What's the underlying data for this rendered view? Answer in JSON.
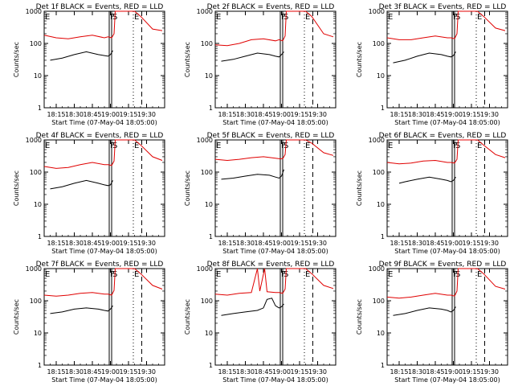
{
  "colors": {
    "events": "#000000",
    "lld": "#e00000",
    "background": "#ffffff",
    "axes": "#000000"
  },
  "chart_data": [
    {
      "type": "line",
      "title": "Det 1f BLACK = Events, RED = LLD",
      "xlabel": "Start Time (07-May-04 18:05:00)",
      "ylabel": "Counts/sec",
      "yscale": "log",
      "ylim": [
        1,
        1000
      ],
      "xlim": [
        "18:05",
        "19:45"
      ],
      "x_ticks": [
        "18:15",
        "18:30",
        "18:45",
        "19:00",
        "19:15",
        "19:30"
      ],
      "y_ticks": [
        "1",
        "10",
        "100",
        "1000"
      ],
      "grid": false,
      "marker_labels": [
        {
          "label": "E",
          "x": "18:05",
          "style": "dotted"
        },
        {
          "label": "F",
          "x": "18:59",
          "style": "solid"
        },
        {
          "label": "S",
          "x": "19:01",
          "style": "dashed"
        },
        {
          "label": "E",
          "x": "19:19",
          "style": "dotted"
        },
        {
          "label": "",
          "x": "19:26",
          "style": "dashed"
        }
      ],
      "series": [
        {
          "name": "Events",
          "x": [
            "18:10",
            "18:20",
            "18:30",
            "18:40",
            "18:50",
            "18:55",
            "18:58",
            "19:00",
            "19:02"
          ],
          "values": [
            30,
            35,
            45,
            55,
            45,
            42,
            40,
            45,
            60
          ]
        },
        {
          "name": "LLD",
          "x": [
            "18:05",
            "18:15",
            "18:25",
            "18:35",
            "18:45",
            "18:55",
            "18:58",
            "19:01",
            "19:03",
            "19:04",
            "19:20",
            "19:25",
            "19:35",
            "19:43"
          ],
          "values": [
            180,
            150,
            140,
            160,
            180,
            150,
            160,
            150,
            200,
            1000,
            1000,
            700,
            280,
            250
          ]
        }
      ]
    },
    {
      "type": "line",
      "title": "Det 2f BLACK = Events, RED = LLD",
      "xlabel": "Start Time (07-May-04 18:05:00)",
      "ylabel": "Counts/sec",
      "yscale": "log",
      "ylim": [
        1,
        1000
      ],
      "xlim": [
        "18:05",
        "19:45"
      ],
      "x_ticks": [
        "18:15",
        "18:30",
        "18:45",
        "19:00",
        "19:15",
        "19:30"
      ],
      "y_ticks": [
        "1",
        "10",
        "100",
        "1000"
      ],
      "grid": false,
      "marker_labels": [
        {
          "label": "E",
          "x": "18:05",
          "style": "dotted"
        },
        {
          "label": "F",
          "x": "18:59",
          "style": "solid"
        },
        {
          "label": "S",
          "x": "19:01",
          "style": "dashed"
        },
        {
          "label": "E",
          "x": "19:19",
          "style": "dotted"
        },
        {
          "label": "",
          "x": "19:26",
          "style": "dashed"
        }
      ],
      "series": [
        {
          "name": "Events",
          "x": [
            "18:10",
            "18:20",
            "18:30",
            "18:40",
            "18:50",
            "18:55",
            "18:58",
            "19:00",
            "19:02"
          ],
          "values": [
            28,
            32,
            40,
            50,
            45,
            40,
            38,
            45,
            55
          ]
        },
        {
          "name": "LLD",
          "x": [
            "18:05",
            "18:15",
            "18:25",
            "18:35",
            "18:45",
            "18:55",
            "18:58",
            "19:01",
            "19:03",
            "19:04",
            "19:20",
            "19:25",
            "19:35",
            "19:43"
          ],
          "values": [
            90,
            85,
            100,
            130,
            140,
            120,
            130,
            120,
            170,
            1000,
            1000,
            700,
            200,
            160
          ]
        }
      ]
    },
    {
      "type": "line",
      "title": "Det 3f BLACK = Events, RED = LLD",
      "xlabel": "Start Time (07-May-04 18:05:00)",
      "ylabel": "Counts/sec",
      "yscale": "log",
      "ylim": [
        1,
        1000
      ],
      "xlim": [
        "18:05",
        "19:45"
      ],
      "x_ticks": [
        "18:15",
        "18:30",
        "18:45",
        "19:00",
        "19:15",
        "19:30"
      ],
      "y_ticks": [
        "1",
        "10",
        "100",
        "1000"
      ],
      "grid": false,
      "marker_labels": [
        {
          "label": "E",
          "x": "18:05",
          "style": "dotted"
        },
        {
          "label": "F",
          "x": "18:59",
          "style": "solid"
        },
        {
          "label": "S",
          "x": "19:01",
          "style": "dashed"
        },
        {
          "label": "E",
          "x": "19:19",
          "style": "dotted"
        },
        {
          "label": "",
          "x": "19:26",
          "style": "dashed"
        }
      ],
      "series": [
        {
          "name": "Events",
          "x": [
            "18:10",
            "18:20",
            "18:30",
            "18:40",
            "18:50",
            "18:55",
            "18:58",
            "19:00",
            "19:02"
          ],
          "values": [
            25,
            30,
            40,
            50,
            45,
            40,
            38,
            42,
            55
          ]
        },
        {
          "name": "LLD",
          "x": [
            "18:05",
            "18:15",
            "18:25",
            "18:35",
            "18:45",
            "18:55",
            "18:58",
            "19:01",
            "19:03",
            "19:04",
            "19:20",
            "19:25",
            "19:35",
            "19:43"
          ],
          "values": [
            150,
            130,
            130,
            150,
            170,
            150,
            150,
            140,
            200,
            1000,
            1000,
            700,
            300,
            250
          ]
        }
      ]
    },
    {
      "type": "line",
      "title": "Det 4f BLACK = Events, RED = LLD",
      "xlabel": "Start Time (07-May-04 18:05:00)",
      "ylabel": "Counts/sec",
      "yscale": "log",
      "ylim": [
        1,
        1000
      ],
      "xlim": [
        "18:05",
        "19:45"
      ],
      "x_ticks": [
        "18:15",
        "18:30",
        "18:45",
        "19:00",
        "19:15",
        "19:30"
      ],
      "y_ticks": [
        "1",
        "10",
        "100",
        "1000"
      ],
      "grid": false,
      "marker_labels": [
        {
          "label": "E",
          "x": "18:05",
          "style": "dotted"
        },
        {
          "label": "F",
          "x": "18:59",
          "style": "solid"
        },
        {
          "label": "S",
          "x": "19:01",
          "style": "dashed"
        },
        {
          "label": "E",
          "x": "19:19",
          "style": "dotted"
        },
        {
          "label": "",
          "x": "19:26",
          "style": "dashed"
        }
      ],
      "series": [
        {
          "name": "Events",
          "x": [
            "18:10",
            "18:20",
            "18:30",
            "18:40",
            "18:50",
            "18:55",
            "18:58",
            "19:00",
            "19:02"
          ],
          "values": [
            30,
            35,
            45,
            55,
            45,
            40,
            38,
            40,
            55
          ]
        },
        {
          "name": "LLD",
          "x": [
            "18:05",
            "18:15",
            "18:25",
            "18:35",
            "18:45",
            "18:55",
            "18:58",
            "19:01",
            "19:03",
            "19:04",
            "19:20",
            "19:25",
            "19:35",
            "19:43"
          ],
          "values": [
            150,
            130,
            140,
            170,
            200,
            170,
            170,
            160,
            220,
            1000,
            1000,
            700,
            300,
            230
          ]
        }
      ]
    },
    {
      "type": "line",
      "title": "Det 5f BLACK = Events, RED = LLD",
      "xlabel": "Start Time (07-May-04 18:05:00)",
      "ylabel": "Counts/sec",
      "yscale": "log",
      "ylim": [
        1,
        1000
      ],
      "xlim": [
        "18:05",
        "19:45"
      ],
      "x_ticks": [
        "18:15",
        "18:30",
        "18:45",
        "19:00",
        "19:15",
        "19:30"
      ],
      "y_ticks": [
        "1",
        "10",
        "100",
        "1000"
      ],
      "grid": false,
      "marker_labels": [
        {
          "label": "E",
          "x": "18:05",
          "style": "dotted"
        },
        {
          "label": "F",
          "x": "18:59",
          "style": "solid"
        },
        {
          "label": "S",
          "x": "19:01",
          "style": "dashed"
        },
        {
          "label": "E",
          "x": "19:19",
          "style": "dotted"
        },
        {
          "label": "",
          "x": "19:26",
          "style": "dashed"
        }
      ],
      "series": [
        {
          "name": "Events",
          "x": [
            "18:10",
            "18:20",
            "18:30",
            "18:40",
            "18:50",
            "18:55",
            "18:58",
            "19:00",
            "19:02"
          ],
          "values": [
            60,
            65,
            75,
            85,
            80,
            70,
            65,
            75,
            120
          ]
        },
        {
          "name": "LLD",
          "x": [
            "18:05",
            "18:15",
            "18:25",
            "18:35",
            "18:45",
            "18:55",
            "18:58",
            "19:01",
            "19:03",
            "19:04",
            "19:20",
            "19:25",
            "19:35",
            "19:43"
          ],
          "values": [
            250,
            230,
            250,
            280,
            300,
            270,
            260,
            260,
            350,
            1000,
            1000,
            800,
            400,
            330
          ]
        }
      ]
    },
    {
      "type": "line",
      "title": "Det 6f BLACK = Events, RED = LLD",
      "xlabel": "Start Time (07-May-04 18:05:00)",
      "ylabel": "Counts/sec",
      "yscale": "log",
      "ylim": [
        1,
        1000
      ],
      "xlim": [
        "18:05",
        "19:45"
      ],
      "x_ticks": [
        "18:15",
        "18:30",
        "18:45",
        "19:00",
        "19:15",
        "19:30"
      ],
      "y_ticks": [
        "1",
        "10",
        "100",
        "1000"
      ],
      "grid": false,
      "marker_labels": [
        {
          "label": "E",
          "x": "18:05",
          "style": "dotted"
        },
        {
          "label": "F",
          "x": "18:59",
          "style": "solid"
        },
        {
          "label": "S",
          "x": "19:01",
          "style": "dashed"
        },
        {
          "label": "E",
          "x": "19:19",
          "style": "dotted"
        },
        {
          "label": "",
          "x": "19:26",
          "style": "dashed"
        }
      ],
      "series": [
        {
          "name": "Events",
          "x": [
            "18:15",
            "18:20",
            "18:30",
            "18:40",
            "18:50",
            "18:55",
            "18:58",
            "19:00",
            "19:02"
          ],
          "values": [
            45,
            50,
            60,
            70,
            60,
            55,
            50,
            55,
            70
          ]
        },
        {
          "name": "LLD",
          "x": [
            "18:05",
            "18:15",
            "18:25",
            "18:35",
            "18:45",
            "18:55",
            "18:58",
            "19:01",
            "19:03",
            "19:04",
            "19:20",
            "19:25",
            "19:35",
            "19:43"
          ],
          "values": [
            200,
            180,
            190,
            220,
            230,
            200,
            200,
            190,
            250,
            1000,
            1000,
            700,
            350,
            280
          ]
        }
      ]
    },
    {
      "type": "line",
      "title": "Det 7f BLACK = Events, RED = LLD",
      "xlabel": "Start Time (07-May-04 18:05:00)",
      "ylabel": "Counts/sec",
      "yscale": "log",
      "ylim": [
        1,
        1000
      ],
      "xlim": [
        "18:05",
        "19:45"
      ],
      "x_ticks": [
        "18:15",
        "18:30",
        "18:45",
        "19:00",
        "19:15",
        "19:30"
      ],
      "y_ticks": [
        "1",
        "10",
        "100",
        "1000"
      ],
      "grid": false,
      "marker_labels": [
        {
          "label": "E",
          "x": "18:05",
          "style": "dotted"
        },
        {
          "label": "F",
          "x": "18:59",
          "style": "solid"
        },
        {
          "label": "S",
          "x": "19:01",
          "style": "dashed"
        },
        {
          "label": "E",
          "x": "19:19",
          "style": "dotted"
        },
        {
          "label": "",
          "x": "19:26",
          "style": "dashed"
        }
      ],
      "series": [
        {
          "name": "Events",
          "x": [
            "18:10",
            "18:20",
            "18:30",
            "18:40",
            "18:50",
            "18:55",
            "18:58",
            "19:00",
            "19:02"
          ],
          "values": [
            40,
            45,
            55,
            60,
            55,
            50,
            48,
            55,
            70
          ]
        },
        {
          "name": "LLD",
          "x": [
            "18:05",
            "18:15",
            "18:25",
            "18:35",
            "18:45",
            "18:55",
            "18:58",
            "19:01",
            "19:03",
            "19:04",
            "19:20",
            "19:25",
            "19:35",
            "19:43"
          ],
          "values": [
            150,
            140,
            150,
            170,
            180,
            160,
            160,
            150,
            210,
            1000,
            1000,
            700,
            300,
            230
          ]
        }
      ]
    },
    {
      "type": "line",
      "title": "Det 8f BLACK = Events, RED = LLD",
      "xlabel": "Start Time (07-May-04 18:05:00)",
      "ylabel": "Counts/sec",
      "yscale": "log",
      "ylim": [
        1,
        1000
      ],
      "xlim": [
        "18:05",
        "19:45"
      ],
      "x_ticks": [
        "18:15",
        "18:30",
        "18:45",
        "19:00",
        "19:15",
        "19:30"
      ],
      "y_ticks": [
        "1",
        "10",
        "100",
        "1000"
      ],
      "grid": false,
      "marker_labels": [
        {
          "label": "E",
          "x": "18:05",
          "style": "dotted"
        },
        {
          "label": "F",
          "x": "18:59",
          "style": "solid"
        },
        {
          "label": "S",
          "x": "19:01",
          "style": "dashed"
        },
        {
          "label": "E",
          "x": "19:19",
          "style": "dotted"
        },
        {
          "label": "",
          "x": "19:26",
          "style": "dashed"
        }
      ],
      "series": [
        {
          "name": "Events",
          "x": [
            "18:10",
            "18:20",
            "18:30",
            "18:40",
            "18:45",
            "18:48",
            "18:52",
            "18:55",
            "18:58",
            "19:00",
            "19:02"
          ],
          "values": [
            35,
            40,
            45,
            50,
            60,
            110,
            120,
            70,
            60,
            65,
            80
          ]
        },
        {
          "name": "LLD",
          "x": [
            "18:05",
            "18:15",
            "18:25",
            "18:35",
            "18:40",
            "18:42",
            "18:46",
            "18:48",
            "18:55",
            "18:58",
            "19:01",
            "19:03",
            "19:04",
            "19:20",
            "19:25",
            "19:35",
            "19:43"
          ],
          "values": [
            160,
            150,
            170,
            180,
            1000,
            200,
            1000,
            190,
            180,
            180,
            170,
            230,
            1000,
            1000,
            700,
            300,
            240
          ]
        }
      ]
    },
    {
      "type": "line",
      "title": "Det 9f BLACK = Events, RED = LLD",
      "xlabel": "Start Time (07-May-04 18:05:00)",
      "ylabel": "Counts/sec",
      "yscale": "log",
      "ylim": [
        1,
        1000
      ],
      "xlim": [
        "18:05",
        "19:45"
      ],
      "x_ticks": [
        "18:15",
        "18:30",
        "18:45",
        "19:00",
        "19:15",
        "19:30"
      ],
      "y_ticks": [
        "1",
        "10",
        "100",
        "1000"
      ],
      "grid": false,
      "marker_labels": [
        {
          "label": "E",
          "x": "18:05",
          "style": "dotted"
        },
        {
          "label": "F",
          "x": "18:59",
          "style": "solid"
        },
        {
          "label": "S",
          "x": "19:01",
          "style": "dashed"
        },
        {
          "label": "E",
          "x": "19:19",
          "style": "dotted"
        },
        {
          "label": "",
          "x": "19:26",
          "style": "dashed"
        }
      ],
      "series": [
        {
          "name": "Events",
          "x": [
            "18:10",
            "18:20",
            "18:30",
            "18:40",
            "18:50",
            "18:55",
            "18:58",
            "19:00",
            "19:02"
          ],
          "values": [
            35,
            40,
            50,
            60,
            55,
            50,
            45,
            50,
            65
          ]
        },
        {
          "name": "LLD",
          "x": [
            "18:05",
            "18:15",
            "18:25",
            "18:35",
            "18:45",
            "18:55",
            "18:58",
            "19:01",
            "19:03",
            "19:04",
            "19:20",
            "19:25",
            "19:35",
            "19:43"
          ],
          "values": [
            130,
            120,
            130,
            150,
            170,
            150,
            150,
            140,
            200,
            1000,
            1000,
            700,
            280,
            230
          ]
        }
      ]
    }
  ]
}
